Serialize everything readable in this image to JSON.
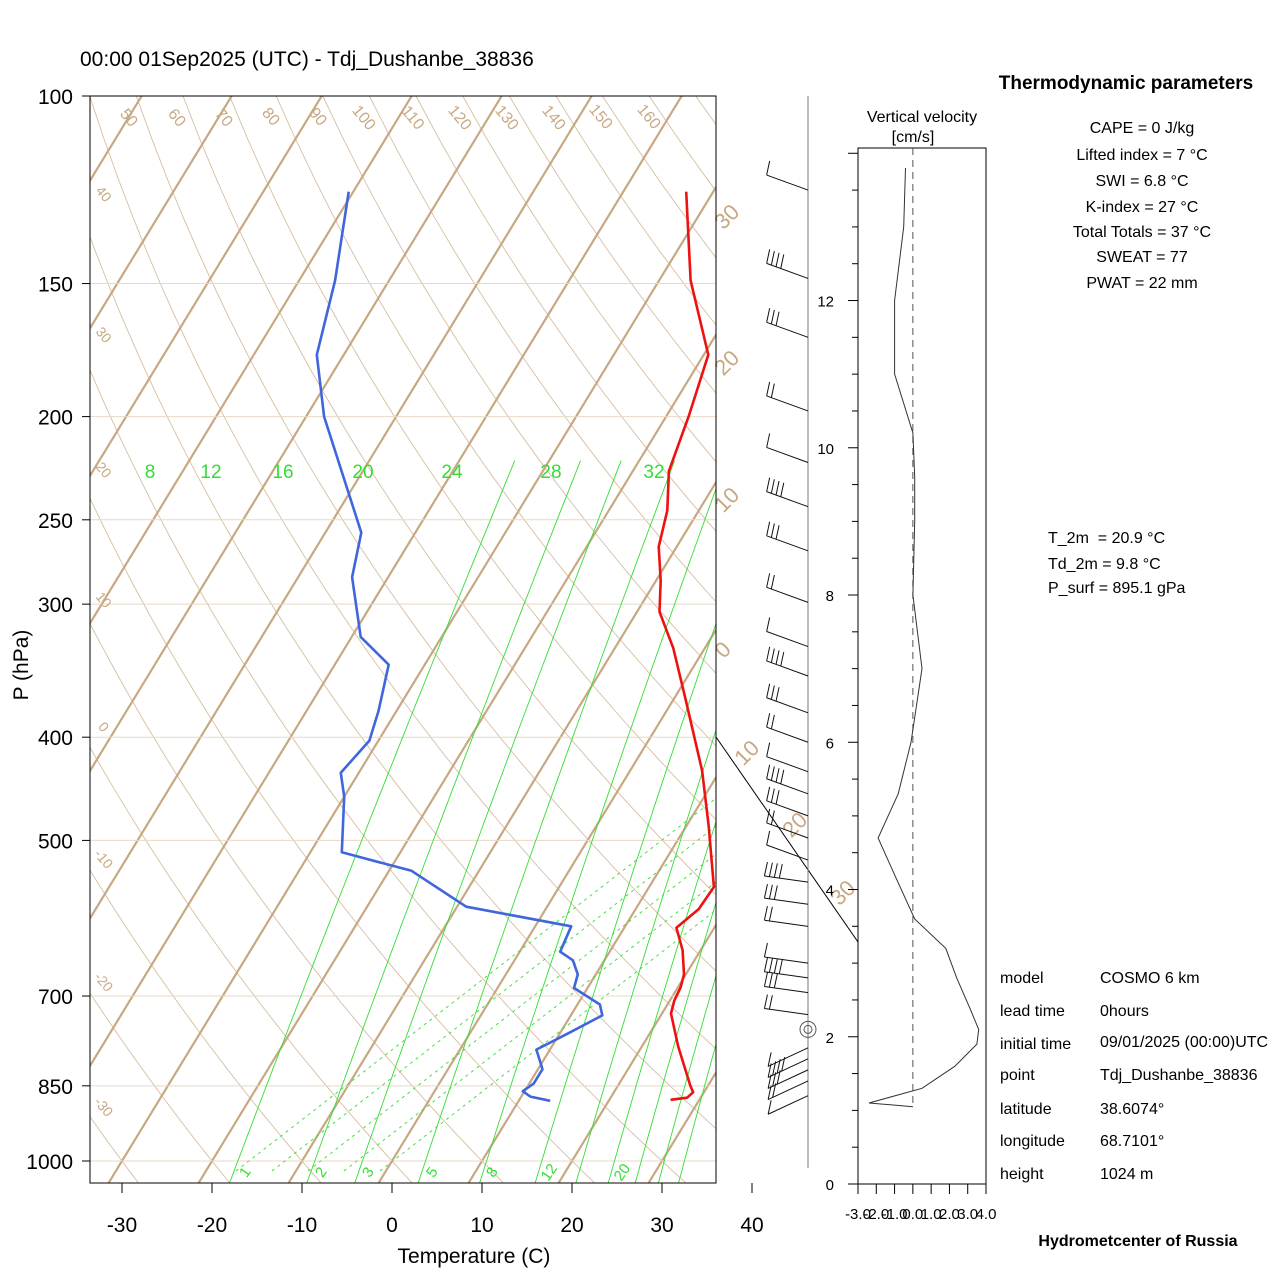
{
  "title": "00:00 01Sep2025 (UTC) - Tdj_Dushanbe_38836",
  "colors": {
    "temperature": "#ee1111",
    "dewpoint": "#3f66dd",
    "dry_adiabat": "#c8a882",
    "isotherm": "#c8a882",
    "mixing_ratio": "#33dd33",
    "frame": "#000000"
  },
  "chart_data": [
    {
      "type": "line",
      "subtype": "skew-T log-P diagram",
      "xlabel": "Temperature (C)",
      "ylabel": "P (hPa)",
      "xlim": [
        -33.5,
        36
      ],
      "ylim": [
        1035,
        100
      ],
      "y_scale": "log",
      "x_ticks": [
        -30,
        -20,
        -10,
        0,
        10,
        20,
        30,
        40
      ],
      "y_ticks": [
        100,
        150,
        200,
        250,
        300,
        400,
        500,
        700,
        850,
        1000
      ],
      "grid": true,
      "series": [
        {
          "key": "temperature",
          "points": [
            [
              26.8,
              876
            ],
            [
              28.5,
              872
            ],
            [
              28.8,
              862
            ],
            [
              28.0,
              849
            ],
            [
              24.0,
              780
            ],
            [
              21.0,
              727
            ],
            [
              20.5,
              707
            ],
            [
              20.3,
              687
            ],
            [
              19.8,
              668
            ],
            [
              18.0,
              634
            ],
            [
              15.8,
              604
            ],
            [
              17.0,
              580
            ],
            [
              17.2,
              553
            ],
            [
              12.5,
              485
            ],
            [
              8.0,
              430
            ],
            [
              1.5,
              370
            ],
            [
              -3.5,
              330
            ],
            [
              -7.5,
              305
            ],
            [
              -9.5,
              285
            ],
            [
              -12.0,
              265
            ],
            [
              -13.5,
              245
            ],
            [
              -16.0,
              225
            ],
            [
              -17.5,
              200
            ],
            [
              -19.5,
              175
            ],
            [
              -26.5,
              149
            ],
            [
              -33.0,
              123
            ]
          ]
        },
        {
          "key": "dewpoint",
          "points": [
            [
              13.5,
              878
            ],
            [
              11.0,
              870
            ],
            [
              9.8,
              860
            ],
            [
              10.5,
              846
            ],
            [
              10.5,
              820
            ],
            [
              8.5,
              786
            ],
            [
              11.0,
              758
            ],
            [
              13.5,
              730
            ],
            [
              12.5,
              713
            ],
            [
              8.5,
              688
            ],
            [
              8.0,
              668
            ],
            [
              6.5,
              648
            ],
            [
              4.5,
              636
            ],
            [
              4.0,
              602
            ],
            [
              -9.0,
              577
            ],
            [
              -17.5,
              534
            ],
            [
              -26.5,
              513
            ],
            [
              -30.0,
              455
            ],
            [
              -32.0,
              432
            ],
            [
              -31.0,
              403
            ],
            [
              -32.0,
              378
            ],
            [
              -34.0,
              342
            ],
            [
              -39.0,
              322
            ],
            [
              -44.0,
              283
            ],
            [
              -46.0,
              257
            ],
            [
              -58.0,
              200
            ],
            [
              -63.0,
              175
            ],
            [
              -66.0,
              149
            ],
            [
              -70.5,
              123
            ]
          ]
        }
      ],
      "dry_adiabat_labels": [
        "-30",
        "-20",
        "-10",
        "0",
        "10",
        "20",
        "30",
        "40",
        "50",
        "60",
        "70",
        "80",
        "90",
        "100",
        "110",
        "120",
        "130",
        "140",
        "150",
        "160"
      ],
      "mixing_ratio_labels_top": [
        "8",
        "12",
        "16",
        "20",
        "24",
        "28",
        "32"
      ],
      "mixing_ratio_labels_bottom": [
        "1",
        "2",
        "3",
        "5",
        "8",
        "12",
        "20"
      ],
      "isotherm_edge_labels_left": [
        "40",
        "30",
        "20",
        "10",
        "0",
        "-10",
        "-20",
        "-30"
      ],
      "isotherm_edge_labels_right": [
        "30",
        "20",
        "10",
        "0",
        "10",
        "20",
        "30"
      ]
    },
    {
      "type": "line",
      "title": "Vertical velocity",
      "unit": "[cm/s]",
      "xlim": [
        -3.0,
        4.0
      ],
      "ylim": [
        0,
        13.8
      ],
      "x_tick_labels": [
        "-3.0",
        "-2.0",
        "-1.0",
        "0.0",
        "1.0",
        "2.0",
        "3.0",
        "4.0"
      ],
      "y_tick_labels": [
        "0",
        "2",
        "4",
        "6",
        "8",
        "10",
        "12"
      ],
      "zero_line": "dashed",
      "heights_km": [
        1.05,
        1.1,
        1.3,
        1.6,
        1.9,
        2.1,
        2.4,
        2.8,
        3.2,
        3.6,
        4.2,
        4.7,
        5.3,
        6.0,
        7.0,
        8.0,
        9.0,
        9.6,
        10.2,
        11.0,
        12.0,
        13.0,
        13.8
      ],
      "velocity": [
        0.0,
        -2.4,
        0.5,
        2.3,
        3.5,
        3.6,
        3.1,
        2.4,
        1.8,
        0.1,
        -1.0,
        -1.9,
        -0.8,
        -0.1,
        0.5,
        0.0,
        0.1,
        0.1,
        0.0,
        -1.0,
        -1.0,
        -0.5,
        -0.4
      ]
    }
  ],
  "wind_barbs": {
    "heights_km": [
      1.2,
      1.4,
      1.55,
      1.7,
      1.85,
      2.3,
      2.6,
      2.8,
      3.0,
      3.5,
      3.8,
      4.1,
      4.4,
      4.7,
      5.0,
      5.3,
      5.6,
      6.0,
      6.4,
      6.9,
      7.3,
      7.9,
      8.6,
      9.2,
      9.8,
      10.5,
      11.5,
      12.3,
      13.5
    ],
    "calm_marker_km": 2.1
  },
  "thermo_panel": {
    "heading": "Thermodynamic parameters",
    "lines": [
      "CAPE = 0 J/kg",
      "Lifted index = 7 °C",
      "SWI = 6.8 °C",
      "K-index = 27 °C",
      "Total Totals = 37 °C",
      "SWEAT = 77",
      "PWAT = 22 mm"
    ]
  },
  "surface": {
    "lines": [
      "T_2m  = 20.9 °C",
      "Td_2m = 9.8 °C",
      "P_surf = 895.1 gPa"
    ]
  },
  "info": [
    {
      "label": "model",
      "value": "COSMO 6 km"
    },
    {
      "label": "lead time",
      "value": "0hours"
    },
    {
      "label": "initial time",
      "value": "09/01/2025 (00:00)UTC"
    },
    {
      "label": "point",
      "value": "Tdj_Dushanbe_38836"
    },
    {
      "label": "latitude",
      "value": "38.6074°"
    },
    {
      "label": "longitude",
      "value": "68.7101°"
    },
    {
      "label": "height",
      "value": "1024 m"
    }
  ],
  "footer": "Hydrometcenter of Russia"
}
